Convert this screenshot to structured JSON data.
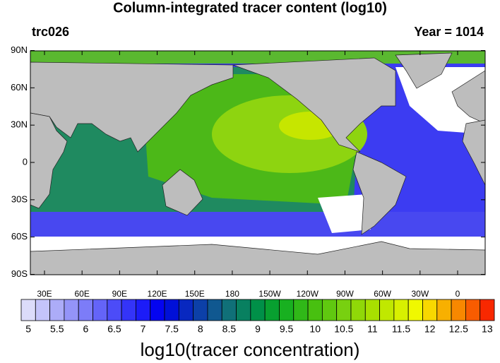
{
  "header": {
    "title": "Column-integrated tracer content (log10)",
    "left_label": "trc026",
    "right_label": "Year = 1014"
  },
  "map": {
    "lat_ticks": [
      {
        "value": 90,
        "label": "90N"
      },
      {
        "value": 60,
        "label": "60N"
      },
      {
        "value": 30,
        "label": "30N"
      },
      {
        "value": 0,
        "label": "0"
      },
      {
        "value": -30,
        "label": "30S"
      },
      {
        "value": -60,
        "label": "60S"
      },
      {
        "value": -90,
        "label": "90S"
      }
    ],
    "lon_ticks": [
      {
        "value": 30,
        "label": "30E"
      },
      {
        "value": 60,
        "label": "60E"
      },
      {
        "value": 90,
        "label": "90E"
      },
      {
        "value": 120,
        "label": "120E"
      },
      {
        "value": 150,
        "label": "150E"
      },
      {
        "value": 180,
        "label": "180"
      },
      {
        "value": 210,
        "label": "150W"
      },
      {
        "value": 240,
        "label": "120W"
      },
      {
        "value": 270,
        "label": "90W"
      },
      {
        "value": 300,
        "label": "60W"
      },
      {
        "value": 330,
        "label": "30W"
      },
      {
        "value": 360,
        "label": "0"
      }
    ]
  },
  "colorbar": {
    "title": "log10(tracer concentration)",
    "labels": [
      "5",
      "5.5",
      "6",
      "6.5",
      "7",
      "7.5",
      "8",
      "8.5",
      "9",
      "9.5",
      "10",
      "10.5",
      "11",
      "11.5",
      "12",
      "12.5",
      "13"
    ],
    "colors": [
      "#dcdcfa",
      "#c4c4fa",
      "#acacf8",
      "#9494f8",
      "#7c7cf8",
      "#6464f8",
      "#4c4cf8",
      "#3434f8",
      "#1c1cf8",
      "#0404f0",
      "#0010d8",
      "#0828c0",
      "#0c40a8",
      "#105890",
      "#107078",
      "#088060",
      "#009048",
      "#08a030",
      "#18b020",
      "#30b818",
      "#48c010",
      "#60c810",
      "#78d010",
      "#90d808",
      "#a8e000",
      "#c0e800",
      "#d8f000",
      "#f0f800",
      "#f8d800",
      "#f8b000",
      "#f88800",
      "#f85c00",
      "#f82800"
    ]
  }
}
